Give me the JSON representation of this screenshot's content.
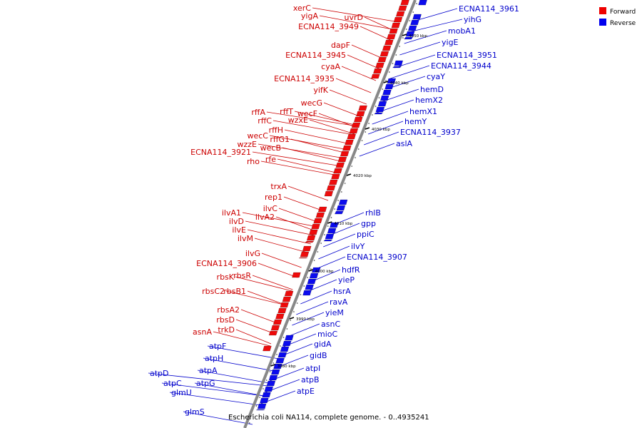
{
  "caption": "Escherichia coli NA114, complete genome. - 0..4935241",
  "legend": [
    {
      "label": "Forward",
      "color": "#ee0000"
    },
    {
      "label": "Reverse",
      "color": "#0000ee"
    }
  ],
  "colors": {
    "forward": "#ee0000",
    "reverse": "#0000ee",
    "forward_label": "#cc0000",
    "reverse_label": "#0000cc",
    "backbone": "#888888"
  },
  "ticks": [
    "4050 kbp",
    "4040 kbp",
    "4030 kbp",
    "4020 kbp",
    "4010 kbp",
    "4000 kbp",
    "3990 kbp",
    "3980 kbp"
  ],
  "forward_genes": [
    "xerC",
    "yigA",
    "uvrD",
    "ECNA114_3949",
    "dapF",
    "ECNA114_3945",
    "cyaA",
    "ECNA114_3935",
    "yifK",
    "wecG",
    "rffA",
    "rffT",
    "wecF",
    "rffC",
    "wzxE",
    "rffH",
    "wecC",
    "rffG1",
    "wzzE",
    "wecB",
    "ECNA114_3921",
    "rfe",
    "rho",
    "trxA",
    "rep1",
    "ilvC",
    "ilvA1",
    "ilvA2",
    "ilvD",
    "ilvE",
    "ilvM",
    "ilvG",
    "ECNA114_3906",
    "rbsK",
    "rbsR",
    "rbsC2",
    "rbsB1",
    "rbsA2",
    "rbsD",
    "asnA",
    "trkD"
  ],
  "reverse_genes": [
    "ECNA114_3961",
    "yihG",
    "mobA1",
    "yigE",
    "ECNA114_3951",
    "ECNA114_3944",
    "cyaY",
    "hemD",
    "hemX2",
    "hemX1",
    "hemY",
    "ECNA114_3937",
    "aslA",
    "rhlB",
    "gpp",
    "ppiC",
    "ilvY",
    "ECNA114_3907",
    "hdfR",
    "yieP",
    "hsrA",
    "ravA",
    "yieM",
    "asnC",
    "mioC",
    "gidA",
    "gidB",
    "atpI",
    "atpB",
    "atpE",
    "atpF",
    "atpH",
    "atpA",
    "atpD",
    "atpC",
    "atpG",
    "glmU",
    "glmS"
  ]
}
